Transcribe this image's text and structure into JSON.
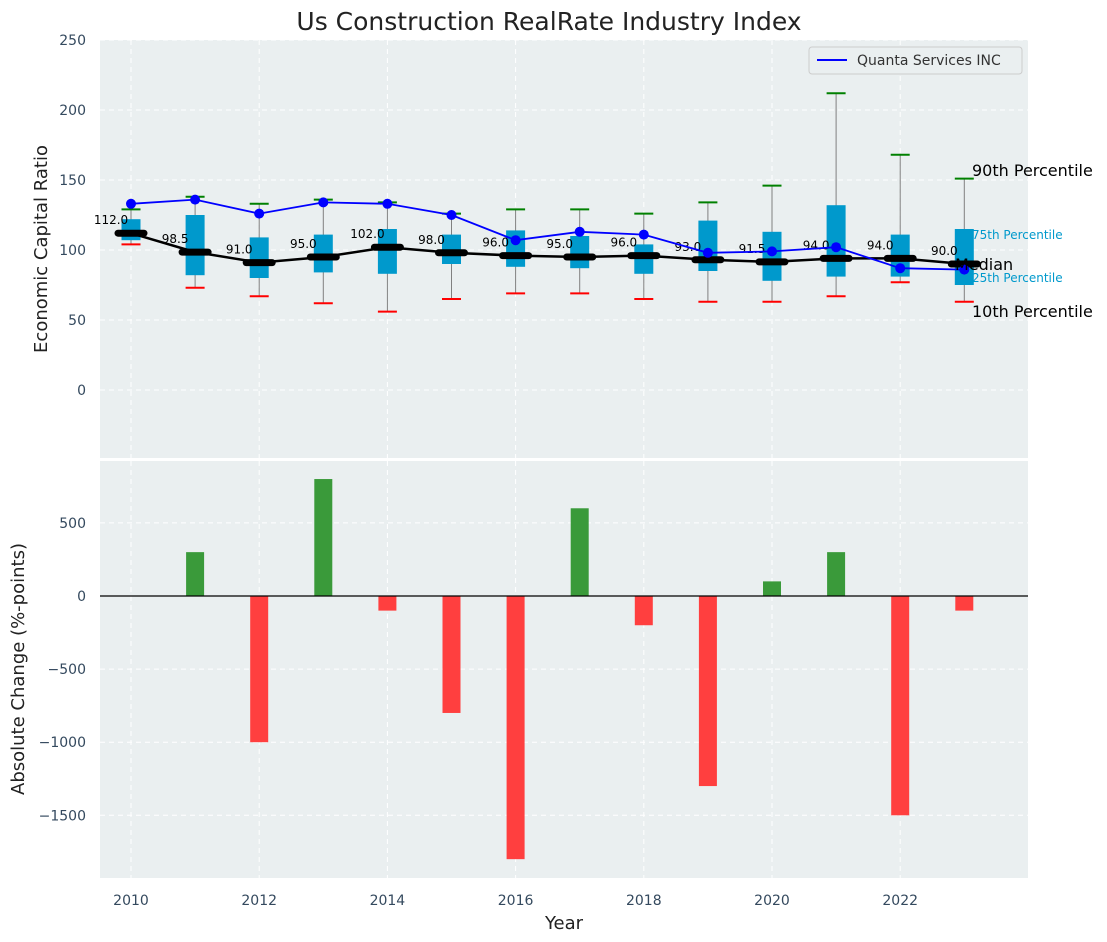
{
  "chart_data": {
    "type": "boxplot+bar",
    "title": "Us Construction RealRate Industry Index",
    "xlabel": "Year",
    "top": {
      "ylabel": "Economic Capital Ratio",
      "ylim": [
        -50,
        250
      ],
      "yticks": [
        0,
        50,
        100,
        150,
        200,
        250
      ],
      "legend": "Quanta Services INC",
      "years": [
        2010,
        2011,
        2012,
        2013,
        2014,
        2015,
        2016,
        2017,
        2018,
        2019,
        2020,
        2021,
        2022,
        2023
      ],
      "p10": [
        104,
        73,
        67,
        62,
        56,
        65,
        69,
        69,
        65,
        63,
        63,
        67,
        77,
        63
      ],
      "p25": [
        107,
        82,
        80,
        84,
        83,
        90,
        88,
        87,
        83,
        85,
        78,
        81,
        81,
        75
      ],
      "median": [
        112.0,
        98.5,
        91.0,
        95.0,
        102.0,
        98.0,
        96.0,
        95.0,
        96.0,
        93.0,
        91.5,
        94.0,
        94.0,
        90.0
      ],
      "median_labels": [
        "112.0",
        "98.5",
        "91.0",
        "95.0",
        "102.0",
        "98.0",
        "96.0",
        "95.0",
        "96.0",
        "93.0",
        "91.5",
        "94.0",
        "94.0",
        "90.0"
      ],
      "p75": [
        122,
        125,
        109,
        111,
        115,
        111,
        114,
        110,
        104,
        121,
        113,
        132,
        111,
        115
      ],
      "p90": [
        129,
        138,
        133,
        136,
        134,
        126,
        129,
        129,
        126,
        134,
        146,
        212,
        168,
        151
      ],
      "company": [
        133,
        136,
        126,
        134,
        133,
        125,
        107,
        113,
        111,
        98,
        99,
        102,
        87,
        86
      ],
      "annotations": {
        "p90": "90th Percentile",
        "p75": "75th Percentile",
        "median": "Median",
        "p25": "25th Percentile",
        "p10": "10th Percentile"
      }
    },
    "bottom": {
      "ylabel": "Absolute Change (%-points)",
      "ylim": [
        -1900,
        950
      ],
      "yticks": [
        500,
        0,
        -500,
        -1000,
        -1500
      ],
      "ytick_labels": [
        "500",
        "0",
        "−500",
        "−1000",
        "−1500"
      ],
      "values": [
        0,
        300,
        -1000,
        800,
        -100,
        -800,
        -1800,
        600,
        -200,
        -1300,
        100,
        300,
        -1500,
        -100
      ]
    },
    "xticks": [
      2010,
      2012,
      2014,
      2016,
      2018,
      2020,
      2022
    ],
    "colors": {
      "box": "#0099cc",
      "company": "#0000ff",
      "median_line": "#000000",
      "p90_cap": "#008000",
      "p10_cap": "#ff0000",
      "pos_bar": "#3a9a3a",
      "neg_bar": "#ff3f3f",
      "panel_bg": "#eaeff0",
      "annot_small": "#0099cc"
    }
  }
}
